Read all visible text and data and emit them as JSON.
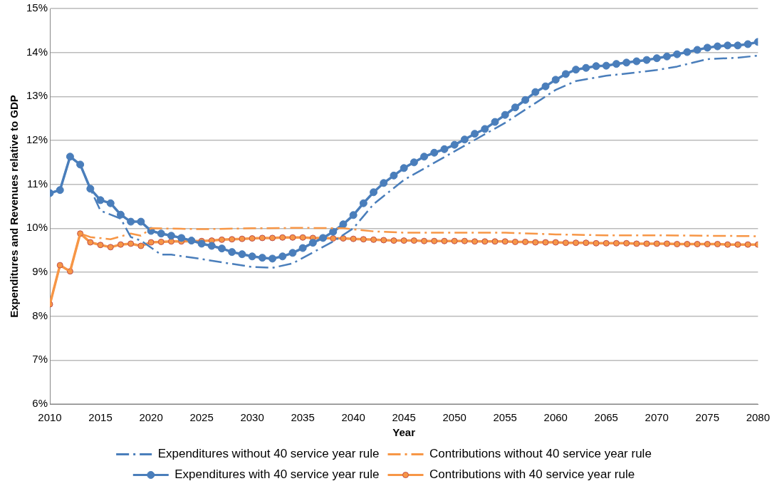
{
  "chart_data": {
    "type": "line",
    "xlabel": "Year",
    "ylabel": "Expenditures and Revenues relative to GDP",
    "xlim": [
      2010,
      2080
    ],
    "xticks": [
      2010,
      2015,
      2020,
      2025,
      2030,
      2035,
      2040,
      2045,
      2050,
      2055,
      2060,
      2065,
      2070,
      2075,
      2080
    ],
    "ylim": [
      6,
      15
    ],
    "yticks": [
      {
        "value": 6,
        "label": "6%"
      },
      {
        "value": 7,
        "label": "7%"
      },
      {
        "value": 8,
        "label": "8%"
      },
      {
        "value": 9,
        "label": "9%"
      },
      {
        "value": 10,
        "label": "10%"
      },
      {
        "value": 11,
        "label": "11%"
      },
      {
        "value": 12,
        "label": "12%"
      },
      {
        "value": 13,
        "label": "13%"
      },
      {
        "value": 14,
        "label": "14%"
      },
      {
        "value": 15,
        "label": "15%"
      }
    ],
    "grid": "y",
    "legend": "bottom",
    "series": [
      {
        "name": "Expenditures without 40 service year rule",
        "color": "#4a7ebb",
        "marker": "none",
        "line_style": "dashed",
        "x": [
          2010,
          2011,
          2012,
          2013,
          2014,
          2015,
          2017,
          2018,
          2019,
          2021,
          2022,
          2025,
          2028,
          2030,
          2032,
          2034,
          2036,
          2038,
          2040,
          2042,
          2045,
          2050,
          2055,
          2058,
          2060,
          2062,
          2065,
          2070,
          2072,
          2075,
          2078,
          2080
        ],
        "values": [
          10.8,
          10.87,
          11.63,
          11.45,
          10.9,
          10.4,
          10.22,
          9.8,
          9.72,
          9.4,
          9.4,
          9.3,
          9.19,
          9.12,
          9.1,
          9.2,
          9.45,
          9.7,
          10.0,
          10.55,
          11.1,
          11.75,
          12.4,
          12.85,
          13.15,
          13.35,
          13.47,
          13.6,
          13.68,
          13.85,
          13.88,
          13.93
        ]
      },
      {
        "name": "Contributions without 40 service year rule",
        "color": "#f79646",
        "marker": "none",
        "line_style": "dashed",
        "x": [
          2010,
          2011,
          2012,
          2013,
          2014,
          2016,
          2018,
          2019,
          2020,
          2025,
          2030,
          2035,
          2039,
          2042,
          2045,
          2050,
          2055,
          2060,
          2065,
          2070,
          2080
        ],
        "values": [
          8.27,
          9.16,
          9.02,
          9.88,
          9.8,
          9.75,
          9.88,
          9.83,
          10.0,
          9.98,
          10.0,
          10.01,
          10.0,
          9.93,
          9.9,
          9.9,
          9.9,
          9.86,
          9.84,
          9.84,
          9.82
        ]
      },
      {
        "name": "Expenditures with 40 service year rule",
        "color": "#4a7ebb",
        "marker": "circle",
        "line_style": "solid",
        "x": [
          2010,
          2011,
          2012,
          2013,
          2014,
          2015,
          2016,
          2017,
          2018,
          2019,
          2020,
          2021,
          2022,
          2023,
          2024,
          2025,
          2026,
          2027,
          2028,
          2029,
          2030,
          2031,
          2032,
          2033,
          2034,
          2035,
          2036,
          2037,
          2038,
          2039,
          2040,
          2041,
          2042,
          2043,
          2044,
          2045,
          2046,
          2047,
          2048,
          2049,
          2050,
          2051,
          2052,
          2053,
          2054,
          2055,
          2056,
          2057,
          2058,
          2059,
          2060,
          2061,
          2062,
          2063,
          2064,
          2065,
          2066,
          2067,
          2068,
          2069,
          2070,
          2071,
          2072,
          2073,
          2074,
          2075,
          2076,
          2077,
          2078,
          2079,
          2080
        ],
        "values": [
          10.8,
          10.87,
          11.63,
          11.45,
          10.9,
          10.64,
          10.57,
          10.31,
          10.15,
          10.15,
          9.94,
          9.88,
          9.83,
          9.78,
          9.72,
          9.65,
          9.6,
          9.54,
          9.46,
          9.41,
          9.36,
          9.33,
          9.31,
          9.36,
          9.44,
          9.55,
          9.67,
          9.78,
          9.92,
          10.09,
          10.3,
          10.57,
          10.82,
          11.03,
          11.2,
          11.37,
          11.5,
          11.63,
          11.72,
          11.8,
          11.9,
          12.02,
          12.15,
          12.26,
          12.42,
          12.58,
          12.75,
          12.92,
          13.1,
          13.23,
          13.38,
          13.51,
          13.61,
          13.65,
          13.69,
          13.7,
          13.74,
          13.77,
          13.8,
          13.83,
          13.87,
          13.91,
          13.96,
          14.01,
          14.06,
          14.11,
          14.14,
          14.16,
          14.16,
          14.19,
          14.24
        ]
      },
      {
        "name": "Contributions with 40 service year rule",
        "color": "#f79646",
        "marker": "circle",
        "line_style": "solid",
        "x": [
          2010,
          2011,
          2012,
          2013,
          2014,
          2015,
          2016,
          2017,
          2018,
          2019,
          2020,
          2021,
          2022,
          2023,
          2024,
          2025,
          2026,
          2027,
          2028,
          2029,
          2030,
          2031,
          2032,
          2033,
          2034,
          2035,
          2036,
          2037,
          2038,
          2039,
          2040,
          2041,
          2042,
          2043,
          2044,
          2045,
          2046,
          2047,
          2048,
          2049,
          2050,
          2051,
          2052,
          2053,
          2054,
          2055,
          2056,
          2057,
          2058,
          2059,
          2060,
          2061,
          2062,
          2063,
          2064,
          2065,
          2066,
          2067,
          2068,
          2069,
          2070,
          2071,
          2072,
          2073,
          2074,
          2075,
          2076,
          2077,
          2078,
          2079,
          2080
        ],
        "values": [
          8.27,
          9.16,
          9.02,
          9.88,
          9.68,
          9.62,
          9.57,
          9.63,
          9.65,
          9.6,
          9.68,
          9.69,
          9.7,
          9.7,
          9.71,
          9.71,
          9.72,
          9.74,
          9.75,
          9.76,
          9.77,
          9.78,
          9.78,
          9.79,
          9.79,
          9.79,
          9.78,
          9.78,
          9.77,
          9.77,
          9.76,
          9.75,
          9.74,
          9.73,
          9.72,
          9.72,
          9.72,
          9.71,
          9.71,
          9.71,
          9.71,
          9.71,
          9.7,
          9.7,
          9.7,
          9.7,
          9.69,
          9.69,
          9.68,
          9.68,
          9.68,
          9.67,
          9.67,
          9.67,
          9.66,
          9.66,
          9.66,
          9.66,
          9.65,
          9.65,
          9.65,
          9.65,
          9.64,
          9.64,
          9.64,
          9.64,
          9.64,
          9.63,
          9.63,
          9.63,
          9.63
        ]
      }
    ]
  }
}
